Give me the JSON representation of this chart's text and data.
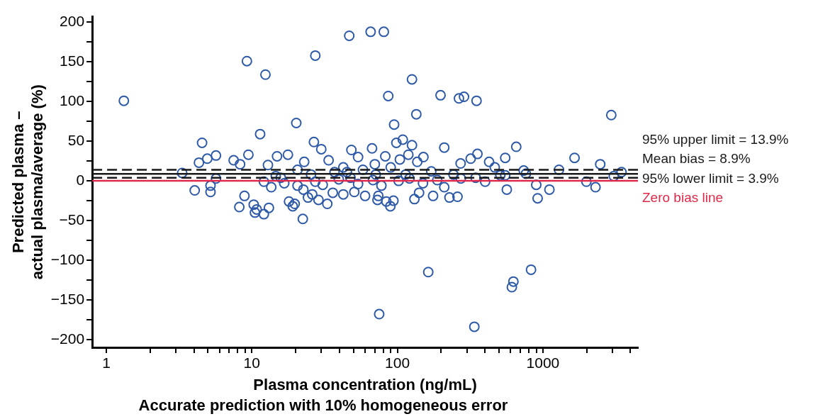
{
  "chart_data": {
    "type": "scatter",
    "title": "Accurate prediction with 10% homogeneous error",
    "xlabel": "Plasma concentration (ng/mL)",
    "ylabel": "Predicted plasma –\nactual plasma/average (%)",
    "log": "x",
    "grid": false,
    "legend": false,
    "marker": "circle",
    "xlim": [
      0.8,
      4500
    ],
    "ylim": [
      -210,
      207
    ],
    "xticks": [
      1,
      {
        "value": 2,
        "label": null
      },
      {
        "value": 3,
        "label": null
      },
      {
        "value": 4,
        "label": null
      },
      {
        "value": 5,
        "label": null
      },
      {
        "value": 6,
        "label": null
      },
      {
        "value": 7,
        "label": null
      },
      {
        "value": 8,
        "label": null
      },
      {
        "value": 9,
        "label": null
      },
      10,
      {
        "value": 20,
        "label": null
      },
      {
        "value": 30,
        "label": null
      },
      {
        "value": 40,
        "label": null
      },
      {
        "value": 50,
        "label": null
      },
      {
        "value": 60,
        "label": null
      },
      {
        "value": 70,
        "label": null
      },
      {
        "value": 80,
        "label": null
      },
      {
        "value": 90,
        "label": null
      },
      100,
      {
        "value": 200,
        "label": null
      },
      {
        "value": 300,
        "label": null
      },
      {
        "value": 400,
        "label": null
      },
      {
        "value": 500,
        "label": null
      },
      {
        "value": 600,
        "label": null
      },
      {
        "value": 700,
        "label": null
      },
      {
        "value": 800,
        "label": null
      },
      {
        "value": 900,
        "label": null
      },
      1000,
      {
        "value": 2000,
        "label": null
      },
      {
        "value": 3000,
        "label": null
      },
      {
        "value": 4000,
        "label": null
      }
    ],
    "yticks": [
      -200,
      {
        "value": -175,
        "label": null
      },
      -150,
      {
        "value": -125,
        "label": null
      },
      -100,
      {
        "value": -75,
        "label": null
      },
      -50,
      {
        "value": -25,
        "label": null
      },
      0,
      {
        "value": 25,
        "label": null
      },
      50,
      {
        "value": 75,
        "label": null
      },
      100,
      {
        "value": 125,
        "label": null
      },
      150,
      {
        "value": 175,
        "label": null
      },
      200
    ],
    "ref_lines": [
      {
        "axis": "y",
        "value": 13.9,
        "label": "95% upper limit = 13.9%",
        "color": "#1a1a1a",
        "line_style": "dashed"
      },
      {
        "axis": "y",
        "value": 8.9,
        "label": "Mean bias = 8.9%",
        "color": "#1a1a1a",
        "line_style": "solid"
      },
      {
        "axis": "y",
        "value": 3.9,
        "label": "95% lower limit = 3.9%",
        "color": "#1a1a1a",
        "line_style": "dashed"
      },
      {
        "axis": "y",
        "value": 0,
        "label": "Zero bias line",
        "color": "#e0284a",
        "line_style": "solid"
      }
    ],
    "series": [
      {
        "color": "#2f5aa8",
        "x": [
          1.32,
          9.25,
          12.4,
          27.3,
          46.7,
          65.5,
          80.7,
          126,
          86.6,
          198,
          265,
          287,
          350,
          135,
          2950,
          95,
          20.2,
          11.4,
          4.55,
          26.7,
          48.3,
          67,
          98.4,
          109,
          126,
          210,
          656,
          551,
          1650,
          2477,
          3470,
          3.32,
          14.9,
          9.47,
          5.67,
          4.94,
          7.5,
          17.7,
          33.7,
          30,
          53.7,
          82.6,
          119,
          151,
          319,
          355,
          427,
          272,
          70,
          42.5,
          22.9,
          8.3,
          4.33,
          12.9,
          20.6,
          25.5,
          37,
          58,
          114,
          171,
          243,
          467,
          738,
          1290,
          764,
          510,
          345,
          551,
          3070,
          1990,
          2300,
          1109,
          900,
          565,
          920,
          401,
          259,
          228,
          176,
          141,
          131,
          94,
          89.5,
          84,
          73,
          74,
          60,
          50.6,
          42.5,
          36,
          33,
          28.7,
          26,
          24.3,
          22.4,
          19.1,
          19.7,
          18,
          22.6,
          20.6,
          13.1,
          12.1,
          10.8,
          10.5,
          10.3,
          8.9,
          8.2,
          5.2,
          5.2,
          4.05,
          5.67,
          15.8,
          13.6,
          12.1,
          16.7,
          14.6,
          27.3,
          30.7,
          39.6,
          47.6,
          53.7,
          68,
          77.7,
          102,
          121,
          150,
          188,
          210,
          273,
          75,
          163,
          627,
          612,
          829,
          338,
          90,
          137,
          104,
          71,
          45
        ],
        "values": [
          101,
          151,
          134,
          158,
          183,
          188,
          188,
          128,
          107,
          108,
          104,
          106,
          101,
          84,
          83,
          71,
          73,
          59,
          48,
          49,
          39,
          41,
          48,
          52,
          45,
          42,
          43,
          29,
          29,
          21,
          11,
          10,
          31,
          33,
          32,
          28,
          26,
          33,
          26,
          40,
          30,
          31,
          33,
          30,
          28,
          34,
          24,
          22,
          21,
          17,
          24,
          21,
          23,
          20,
          14,
          8,
          11,
          14,
          8,
          12,
          8,
          17,
          13,
          14,
          9,
          7,
          4,
          7,
          6,
          -1,
          -8,
          -11,
          -5,
          -11,
          -22,
          -1,
          -20,
          -21,
          -19,
          -15,
          -23,
          -25,
          -32,
          -26,
          -24,
          -19,
          -19,
          -14,
          -17,
          -15,
          -29,
          -24,
          -17,
          -21,
          -48,
          -32,
          -29,
          -26,
          -11,
          -6,
          -34,
          -42,
          -36,
          -40,
          -30,
          -19,
          -33,
          -14,
          -6,
          -12,
          3,
          4,
          -8,
          -1,
          -3,
          6,
          -1,
          -5,
          2,
          4,
          -4,
          1,
          -6,
          0,
          3,
          -3,
          1,
          -8,
          3,
          -168,
          -115,
          -127,
          -134,
          -112,
          -184,
          17,
          24,
          27,
          8,
          11
        ]
      }
    ]
  }
}
